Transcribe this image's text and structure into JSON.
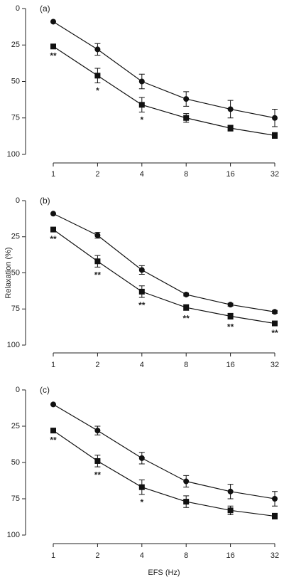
{
  "chart_data": [
    {
      "type": "line",
      "title": "(a)",
      "x": [
        1,
        2,
        4,
        8,
        16,
        32
      ],
      "xlim": [
        1,
        32
      ],
      "xticks": [
        1,
        2,
        4,
        8,
        16,
        32
      ],
      "xscale": "log",
      "ylim": [
        0,
        100
      ],
      "yticks": [
        0,
        25,
        50,
        75,
        100
      ],
      "y_inverted": true,
      "series": [
        {
          "marker": "circle",
          "color": "#111111",
          "values": [
            9,
            28,
            50,
            62,
            69,
            75
          ],
          "errors": [
            0,
            4,
            5,
            5,
            6,
            6
          ]
        },
        {
          "marker": "square",
          "color": "#111111",
          "values": [
            26,
            46,
            66,
            75,
            82,
            87
          ],
          "errors": [
            1,
            5,
            5,
            3,
            2,
            2
          ]
        }
      ],
      "annotations": [
        {
          "x": 1,
          "text": "**"
        },
        {
          "x": 2,
          "text": "*"
        },
        {
          "x": 4,
          "text": "*"
        }
      ]
    },
    {
      "type": "line",
      "title": "(b)",
      "ylabel": "Relaxation (%)",
      "x": [
        1,
        2,
        4,
        8,
        16,
        32
      ],
      "xlim": [
        1,
        32
      ],
      "xticks": [
        1,
        2,
        4,
        8,
        16,
        32
      ],
      "xscale": "log",
      "ylim": [
        0,
        100
      ],
      "yticks": [
        0,
        25,
        50,
        75,
        100
      ],
      "y_inverted": true,
      "series": [
        {
          "marker": "circle",
          "color": "#111111",
          "values": [
            9,
            24,
            48,
            65,
            72,
            77
          ],
          "errors": [
            0,
            2,
            3,
            1,
            1,
            1
          ]
        },
        {
          "marker": "square",
          "color": "#111111",
          "values": [
            20,
            42,
            63,
            74,
            80,
            85
          ],
          "errors": [
            1,
            4,
            4,
            2,
            2,
            1
          ]
        }
      ],
      "annotations": [
        {
          "x": 1,
          "text": "**"
        },
        {
          "x": 2,
          "text": "**"
        },
        {
          "x": 4,
          "text": "**"
        },
        {
          "x": 8,
          "text": "**"
        },
        {
          "x": 16,
          "text": "**"
        },
        {
          "x": 32,
          "text": "**"
        }
      ]
    },
    {
      "type": "line",
      "title": "(c)",
      "xlabel": "EFS (Hz)",
      "x": [
        1,
        2,
        4,
        8,
        16,
        32
      ],
      "xlim": [
        1,
        32
      ],
      "xticks": [
        1,
        2,
        4,
        8,
        16,
        32
      ],
      "xscale": "log",
      "ylim": [
        0,
        100
      ],
      "yticks": [
        0,
        25,
        50,
        75,
        100
      ],
      "y_inverted": true,
      "series": [
        {
          "marker": "circle",
          "color": "#111111",
          "values": [
            10,
            28,
            47,
            63,
            70,
            75
          ],
          "errors": [
            0,
            3,
            4,
            4,
            5,
            5
          ]
        },
        {
          "marker": "square",
          "color": "#111111",
          "values": [
            28,
            49,
            67,
            77,
            83,
            87
          ],
          "errors": [
            1,
            4,
            5,
            4,
            3,
            2
          ]
        }
      ],
      "annotations": [
        {
          "x": 1,
          "text": "**"
        },
        {
          "x": 2,
          "text": "**"
        },
        {
          "x": 4,
          "text": "*"
        }
      ]
    }
  ]
}
